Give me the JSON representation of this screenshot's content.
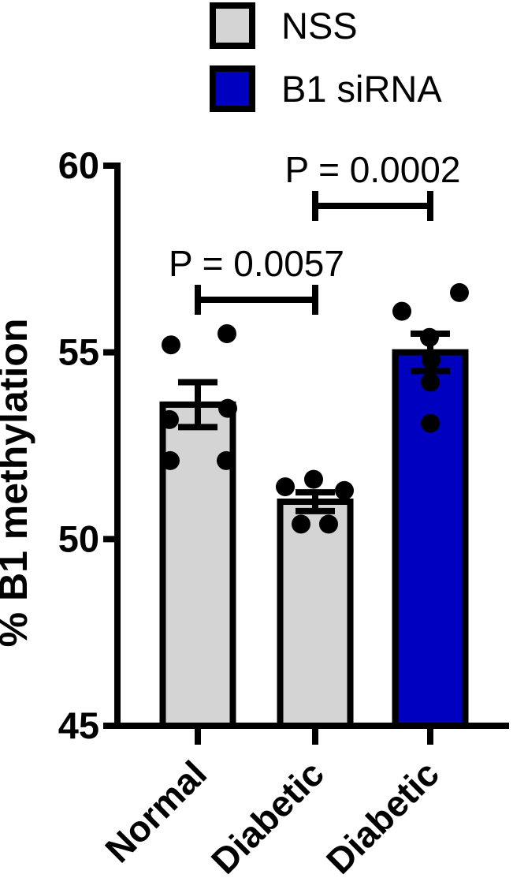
{
  "figure": {
    "background": "#FFFFFF",
    "text_color": "#000000"
  },
  "legend": {
    "position": "top",
    "items": [
      {
        "label": "NSS",
        "color": "#D4D4D4",
        "border": "#000000"
      },
      {
        "label": "B1 siRNA",
        "color": "#0000C0",
        "border": "#000000"
      }
    ]
  },
  "chart_data": {
    "type": "bar",
    "title": "",
    "xlabel": "",
    "ylabel": "% B1 methylation",
    "ylim": [
      45,
      60
    ],
    "yticks": [
      60,
      55,
      50,
      45
    ],
    "grid": false,
    "legend_position": "top",
    "error_bar_type": "SEM",
    "categories": [
      "Normal",
      "Diabetic",
      "Diabetic"
    ],
    "groups": [
      {
        "category": "Normal",
        "series": "NSS",
        "mean": 53.6,
        "sem": 0.6,
        "fill": "#D4D4D4",
        "points": [
          {
            "v": 55.2,
            "dx": -34
          },
          {
            "v": 55.5,
            "dx": 37
          },
          {
            "v": 53.2,
            "dx": -36
          },
          {
            "v": 53.5,
            "dx": 38
          },
          {
            "v": 52.1,
            "dx": -35
          },
          {
            "v": 52.1,
            "dx": 36
          }
        ]
      },
      {
        "category": "Diabetic",
        "series": "NSS",
        "mean": 51.0,
        "sem": 0.25,
        "fill": "#D4D4D4",
        "points": [
          {
            "v": 51.4,
            "dx": -38
          },
          {
            "v": 51.6,
            "dx": -2
          },
          {
            "v": 51.3,
            "dx": 37
          },
          {
            "v": 50.4,
            "dx": -18
          },
          {
            "v": 50.4,
            "dx": 17
          }
        ]
      },
      {
        "category": "Diabetic",
        "series": "B1 siRNA",
        "mean": 55.0,
        "sem": 0.5,
        "fill": "#0000C0",
        "points": [
          {
            "v": 56.1,
            "dx": -36
          },
          {
            "v": 56.6,
            "dx": 37
          },
          {
            "v": 55.4,
            "dx": -1
          },
          {
            "v": 54.8,
            "dx": 1
          },
          {
            "v": 54.2,
            "dx": 0
          },
          {
            "v": 53.1,
            "dx": 0
          }
        ]
      }
    ],
    "comparisons": [
      {
        "from": 0,
        "to": 1,
        "label": "P = 0.0057"
      },
      {
        "from": 1,
        "to": 2,
        "label": "P = 0.0002"
      }
    ]
  }
}
